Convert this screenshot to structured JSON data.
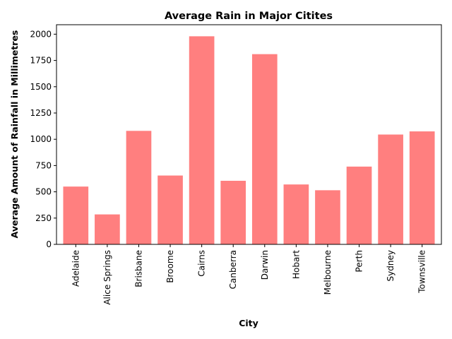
{
  "chart_data": {
    "type": "bar",
    "title": "Average Rain in Major Citites",
    "xlabel": "City",
    "ylabel": "Average Amount of Rainfall in Millimetres",
    "categories": [
      "Adelaide",
      "Alice Springs",
      "Brisbane",
      "Broome",
      "Cairns",
      "Canberra",
      "Darwin",
      "Hobart",
      "Melbourne",
      "Perth",
      "Sydney",
      "Townsville"
    ],
    "values": [
      550,
      285,
      1080,
      655,
      1980,
      605,
      1810,
      570,
      515,
      740,
      1045,
      1075
    ],
    "ylim": [
      0,
      2090
    ],
    "yticks": [
      0,
      250,
      500,
      750,
      1000,
      1250,
      1500,
      1750,
      2000
    ],
    "bar_color": "#ff7f7f",
    "grid": false,
    "legend": "none"
  }
}
